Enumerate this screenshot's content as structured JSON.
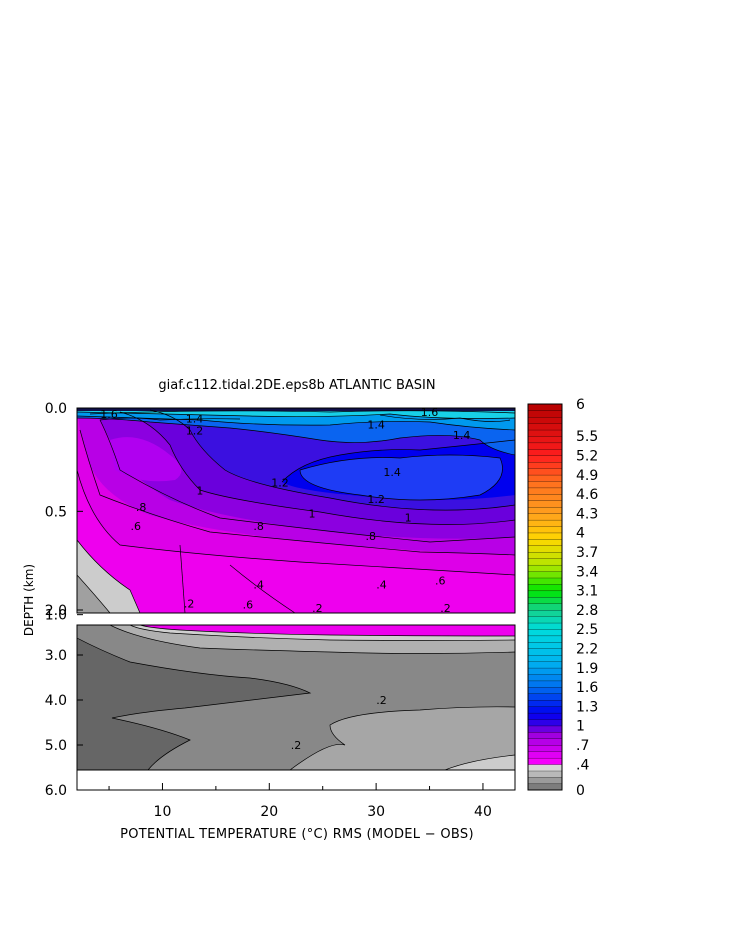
{
  "chart_data": {
    "type": "heatmap",
    "title": "giaf.c112.tidal.2DE.eps8b ATLANTIC BASIN",
    "xlabel": "POTENTIAL TEMPERATURE (°C) RMS (MODEL − OBS)",
    "ylabel": "DEPTH (km)",
    "x_ticks": [
      "10",
      "20",
      "30",
      "40"
    ],
    "x_tick_values": [
      10,
      20,
      30,
      40
    ],
    "xlim": [
      2,
      43
    ],
    "upper_panel": {
      "ylim": [
        0.0,
        1.2
      ],
      "y_ticks": [
        "0.0",
        "0.5",
        "1.0"
      ],
      "y_tick_values": [
        0.0,
        0.5,
        1.0
      ]
    },
    "lower_panel": {
      "ylim": [
        1.2,
        6.0
      ],
      "y_ticks": [
        "2.0",
        "3.0",
        "4.0",
        "5.0",
        "6.0"
      ],
      "y_tick_values": [
        2.0,
        3.0,
        4.0,
        5.0,
        6.0
      ]
    },
    "colorbar": {
      "min": 0,
      "max": 6,
      "step": 0.1,
      "labels": [
        "6",
        "5.5",
        "5.2",
        "4.9",
        "4.6",
        "4.3",
        "4",
        "3.7",
        "3.4",
        "3.1",
        "2.8",
        "2.5",
        "2.2",
        "1.9",
        "1.6",
        "1.3",
        "1",
        ".7",
        ".4",
        "0"
      ],
      "label_values": [
        6,
        5.5,
        5.2,
        4.9,
        4.6,
        4.3,
        4.0,
        3.7,
        3.4,
        3.1,
        2.8,
        2.5,
        2.2,
        1.9,
        1.6,
        1.3,
        1.0,
        0.7,
        0.4,
        0
      ]
    },
    "contour_labels": [
      {
        "text": "1.6",
        "x": 5,
        "depth": 0.03
      },
      {
        "text": "1.4",
        "x": 13,
        "depth": 0.05
      },
      {
        "text": "1.6",
        "x": 35,
        "depth": 0.02
      },
      {
        "text": "1.4",
        "x": 30,
        "depth": 0.08
      },
      {
        "text": "1.2",
        "x": 13,
        "depth": 0.11
      },
      {
        "text": "1.4",
        "x": 38,
        "depth": 0.13
      },
      {
        "text": "1.2",
        "x": 21,
        "depth": 0.36
      },
      {
        "text": "1",
        "x": 13.5,
        "depth": 0.4
      },
      {
        "text": "1.4",
        "x": 31.5,
        "depth": 0.31
      },
      {
        "text": "1.2",
        "x": 30,
        "depth": 0.44
      },
      {
        "text": "1",
        "x": 33,
        "depth": 0.53
      },
      {
        "text": "1",
        "x": 24,
        "depth": 0.51
      },
      {
        "text": ".8",
        "x": 8,
        "depth": 0.48
      },
      {
        "text": ".6",
        "x": 7.5,
        "depth": 0.57
      },
      {
        "text": ".8",
        "x": 19,
        "depth": 0.57
      },
      {
        "text": ".8",
        "x": 29.5,
        "depth": 0.62
      },
      {
        "text": ".6",
        "x": 18,
        "depth": 0.95
      },
      {
        "text": ".6",
        "x": 36,
        "depth": 1.34
      },
      {
        "text": ".4",
        "x": 19,
        "depth": 1.43
      },
      {
        "text": ".4",
        "x": 30.5,
        "depth": 1.43
      },
      {
        "text": ".2",
        "x": 12.5,
        "depth": 1.86
      },
      {
        "text": ".2",
        "x": 24.5,
        "depth": 1.95
      },
      {
        "text": ".2",
        "x": 36.5,
        "depth": 1.95
      },
      {
        "text": ".2",
        "x": 30.5,
        "depth": 4.0
      },
      {
        "text": ".2",
        "x": 22.5,
        "depth": 5.0
      }
    ]
  }
}
